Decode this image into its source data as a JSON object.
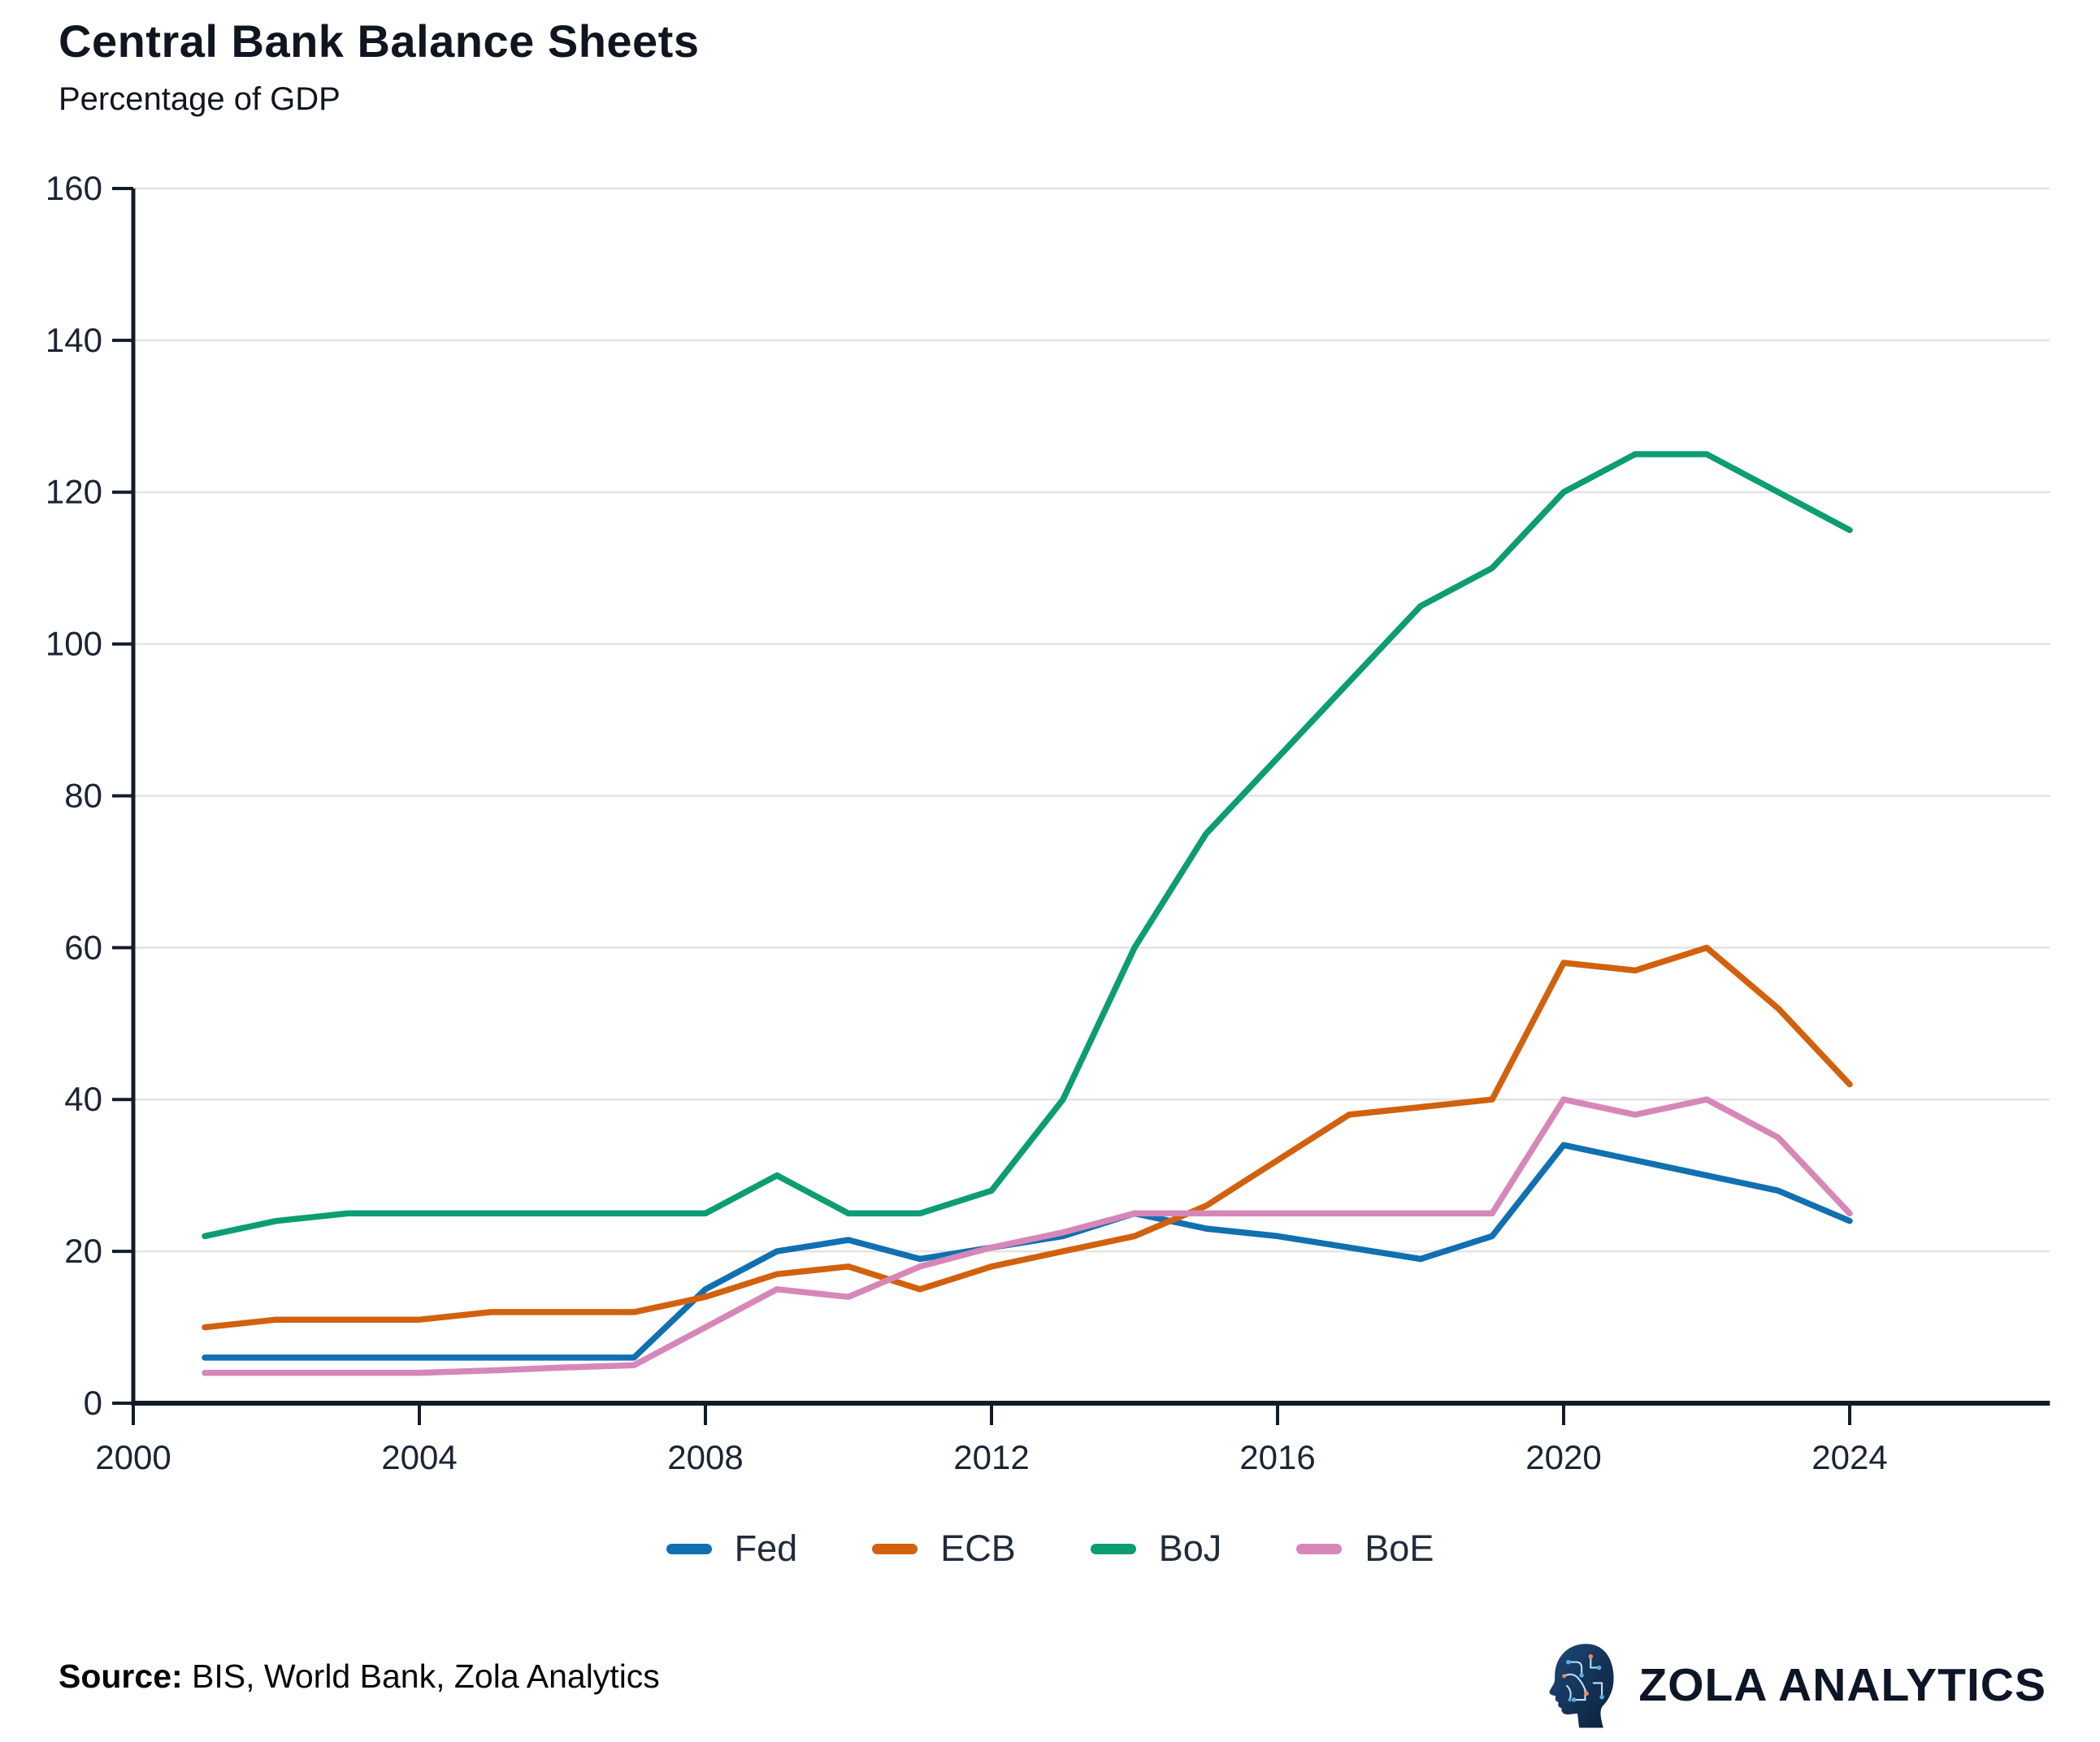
{
  "header": {
    "title": "Central Bank Balance Sheets",
    "subtitle": "Percentage of GDP"
  },
  "chart_data": {
    "type": "line",
    "x": [
      2001,
      2002,
      2003,
      2004,
      2005,
      2006,
      2007,
      2008,
      2009,
      2010,
      2011,
      2012,
      2013,
      2014,
      2015,
      2016,
      2017,
      2018,
      2019,
      2020,
      2021,
      2022,
      2023,
      2024
    ],
    "series": [
      {
        "name": "Fed",
        "color": "#1170b0",
        "values": [
          6,
          6,
          6,
          6,
          6,
          6,
          6,
          15,
          20,
          21.5,
          19,
          20.5,
          22,
          25,
          23,
          22,
          20.5,
          19,
          22,
          34,
          32,
          30,
          28,
          24
        ]
      },
      {
        "name": "ECB",
        "color": "#d2610e",
        "values": [
          10,
          11,
          11,
          11,
          12,
          12,
          12,
          14,
          17,
          18,
          15,
          18,
          20,
          22,
          26,
          32,
          38,
          39,
          40,
          58,
          57,
          60,
          52,
          42
        ]
      },
      {
        "name": "BoJ",
        "color": "#0c9d72",
        "values": [
          22,
          24,
          25,
          25,
          25,
          25,
          25,
          25,
          30,
          25,
          25,
          28,
          40,
          60,
          75,
          85,
          95,
          105,
          110,
          120,
          125,
          125,
          120,
          115
        ]
      },
      {
        "name": "BoE",
        "color": "#d687b8",
        "values": [
          4,
          4,
          4,
          4,
          4.3,
          4.7,
          5,
          10,
          15,
          14,
          18,
          20.5,
          22.5,
          25,
          25,
          25,
          25,
          25,
          25,
          40,
          38,
          40,
          35,
          25
        ]
      }
    ],
    "title": "Central Bank Balance Sheets",
    "subtitle": "Percentage of GDP",
    "xlabel": "",
    "ylabel": "",
    "ylim": [
      0,
      160
    ],
    "ytick_step": 20,
    "yticks": [
      0,
      20,
      40,
      60,
      80,
      100,
      120,
      140,
      160
    ],
    "xticks": [
      2000,
      2004,
      2008,
      2012,
      2016,
      2020,
      2024
    ],
    "xlim": [
      2000,
      2026.8
    ],
    "grid": true,
    "legend_position": "bottom"
  },
  "footer": {
    "source_label": "Source:",
    "source_text": " BIS, World Bank, Zola Analytics"
  },
  "branding": {
    "logo_icon": "circuit-head-icon",
    "logo_text": "ZOLA ANALYTICS"
  },
  "colors": {
    "axis": "#141c28",
    "grid": "#e3e3e3",
    "tick_label": "#1b2433",
    "title_text": "#10151f",
    "legend_text": "#222b3c",
    "logo_navy": "#123158",
    "logo_accent_blue": "#53b1e0",
    "logo_accent_orange": "#ef8a5a"
  }
}
